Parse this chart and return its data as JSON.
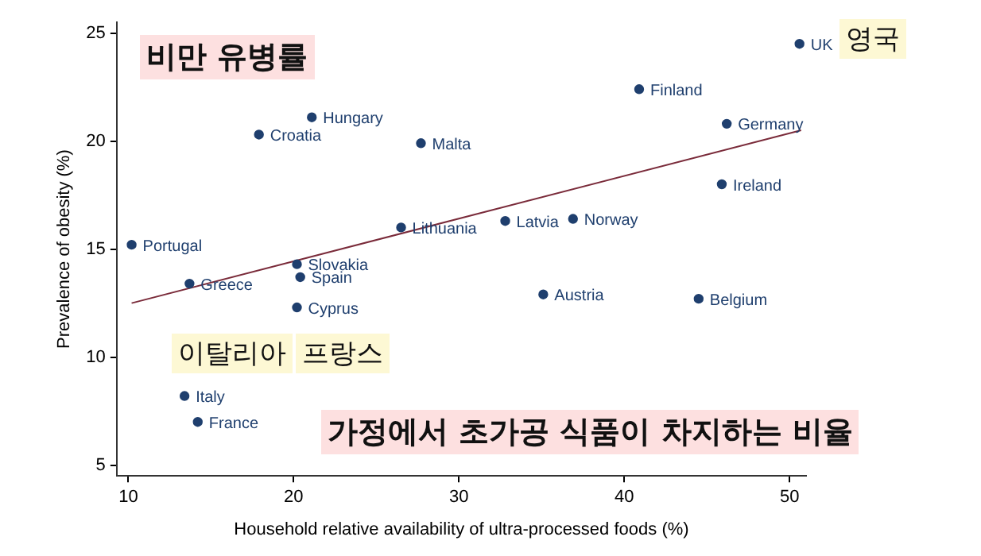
{
  "chart_data": {
    "type": "scatter",
    "xlabel": "Household relative availability of ultra-processed foods (%)",
    "ylabel": "Prevalence of obesity (%)",
    "xlim": [
      9.3,
      51
    ],
    "ylim": [
      4.5,
      25.5
    ],
    "xticks": [
      10,
      20,
      30,
      40,
      50
    ],
    "yticks": [
      5,
      10,
      15,
      20,
      25
    ],
    "annotations": [
      "비만 유병률",
      "영국",
      "이탈리아",
      "프랑스",
      "가정에서 초가공 식품이 차지하는 비율"
    ],
    "series": [
      {
        "color": "#1f3f6e",
        "x": [
          10.2,
          13.7,
          20.2,
          20.4,
          20.2,
          13.4,
          14.2,
          17.9,
          21.1,
          27.7,
          26.5,
          32.8,
          35.1,
          36.9,
          44.5,
          45.9,
          46.2,
          40.9,
          50.6
        ],
        "values": [
          15.2,
          13.4,
          14.3,
          13.7,
          12.3,
          8.2,
          7.0,
          20.3,
          21.1,
          19.9,
          16.0,
          16.3,
          12.9,
          16.4,
          12.7,
          18.0,
          20.8,
          22.4,
          24.5
        ],
        "value_labels": [
          "Portugal",
          "Greece",
          "Slovakia",
          "Spain",
          "Cyprus",
          "Italy",
          "France",
          "Croatia",
          "Hungary",
          "Malta",
          "Lithuania",
          "Latvia",
          "Austria",
          "Norway",
          "Belgium",
          "Ireland",
          "Germany",
          "Finland",
          "UK"
        ]
      },
      {
        "type": "line",
        "color": "#7a2b3a",
        "x": [
          10.2,
          50.7
        ],
        "values": [
          12.5,
          20.5
        ]
      }
    ]
  }
}
